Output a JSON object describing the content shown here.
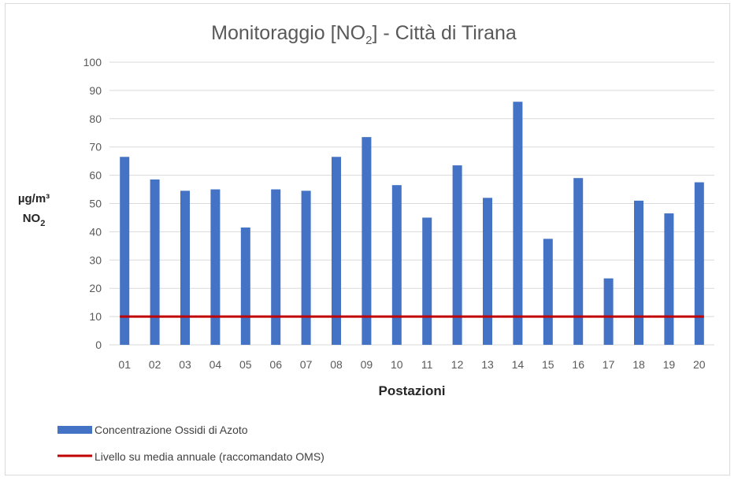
{
  "chart_data": {
    "type": "bar",
    "title": {
      "main": "Monitoraggio [NO",
      "sub": "2",
      "tail": "] - Città di Tirana"
    },
    "ylabel": {
      "line1": "µg/m³",
      "line2": "NO",
      "line2_sub": "2"
    },
    "xlabel": "Postazioni",
    "categories": [
      "01",
      "02",
      "03",
      "04",
      "05",
      "06",
      "07",
      "08",
      "09",
      "10",
      "11",
      "12",
      "13",
      "14",
      "15",
      "16",
      "17",
      "18",
      "19",
      "20"
    ],
    "series": [
      {
        "name": "Concentrazione Ossidi di Azoto",
        "color": "#4472c4",
        "values": [
          66.5,
          58.5,
          54.5,
          55,
          41.5,
          55,
          54.5,
          66.5,
          73.5,
          56.5,
          45,
          63.5,
          52,
          86,
          37.5,
          59,
          23.5,
          51,
          46.5,
          57.5
        ]
      }
    ],
    "reference_line": {
      "name": "Livello su media annuale (raccomandato OMS)",
      "value": 10,
      "color": "#c00000"
    },
    "ylim": [
      0,
      100
    ],
    "yticks": [
      0,
      10,
      20,
      30,
      40,
      50,
      60,
      70,
      80,
      90,
      100
    ],
    "grid": true,
    "legend_position": "bottom-left"
  }
}
